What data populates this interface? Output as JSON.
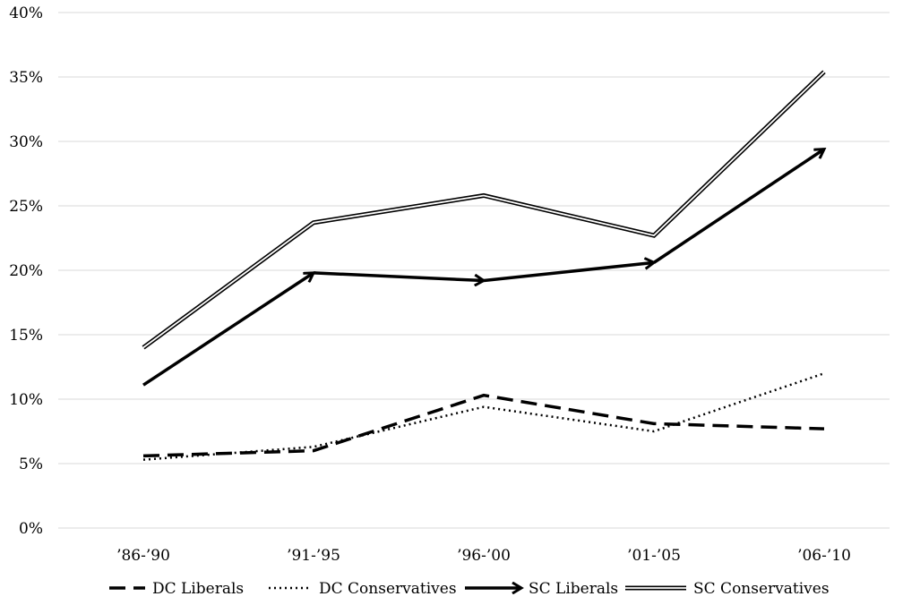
{
  "chart_data": {
    "type": "line",
    "title": "",
    "xlabel": "",
    "ylabel": "",
    "categories": [
      "’86-’90",
      "’91-’95",
      "’96-’00",
      "’01-’05",
      "’06-’10"
    ],
    "ylim": [
      0,
      40
    ],
    "y_ticks": [
      0,
      5,
      10,
      15,
      20,
      25,
      30,
      35,
      40
    ],
    "y_tick_format": "%",
    "grid": "horizontal",
    "legend_position": "bottom",
    "series": [
      {
        "name": "DC Liberals",
        "style": "dashed",
        "values": [
          5.6,
          6.0,
          10.3,
          8.1,
          7.7
        ]
      },
      {
        "name": "DC Conservatives",
        "style": "dotted",
        "values": [
          5.3,
          6.3,
          9.4,
          7.5,
          12.0
        ]
      },
      {
        "name": "SC Liberals",
        "style": "arrow",
        "values": [
          11.1,
          19.8,
          19.2,
          20.6,
          29.4
        ]
      },
      {
        "name": "SC Conservatives",
        "style": "double",
        "values": [
          14.0,
          23.7,
          25.8,
          22.7,
          35.4
        ]
      }
    ],
    "colors": {
      "line": "#000000",
      "grid": "#d9d9d9",
      "background": "#ffffff"
    }
  }
}
